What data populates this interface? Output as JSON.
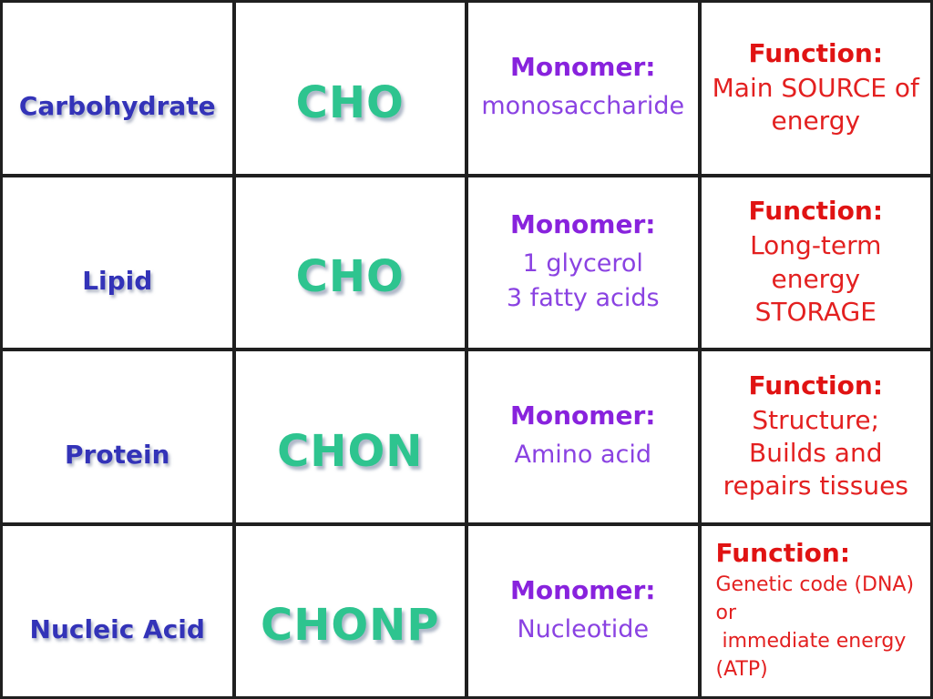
{
  "colors": {
    "name_text": "#3333b8",
    "formula_text": "#2ec48f",
    "monomer_label": "#8822dd",
    "monomer_body": "#8a42e2",
    "function_label": "#e01313",
    "function_body": "#e32020",
    "grid_border": "#1f1f1f",
    "background": "#ffffff"
  },
  "rows": [
    {
      "name": "Carbohydrate",
      "formula": "CHO",
      "monomer_label": "Monomer:",
      "monomer_lines": [
        "monosaccharide"
      ],
      "function_label": "Function:",
      "function_lines": [
        "Main SOURCE of",
        "energy"
      ]
    },
    {
      "name": "Lipid",
      "formula": "CHO",
      "monomer_label": "Monomer:",
      "monomer_lines": [
        "1 glycerol",
        "3 fatty acids"
      ],
      "function_label": "Function:",
      "function_lines": [
        "Long-term",
        "energy",
        "STORAGE"
      ]
    },
    {
      "name": "Protein",
      "formula": "CHON",
      "monomer_label": "Monomer:",
      "monomer_lines": [
        "Amino acid"
      ],
      "function_label": "Function:",
      "function_lines": [
        "Structure;",
        "Builds and",
        "repairs tissues"
      ]
    },
    {
      "name": "Nucleic Acid",
      "formula": "CHONP",
      "monomer_label": "Monomer:",
      "monomer_lines": [
        "Nucleotide"
      ],
      "function_label": "Function:",
      "function_lines": [
        "Genetic code (DNA)",
        "or",
        " immediate energy",
        "(ATP)"
      ]
    }
  ]
}
